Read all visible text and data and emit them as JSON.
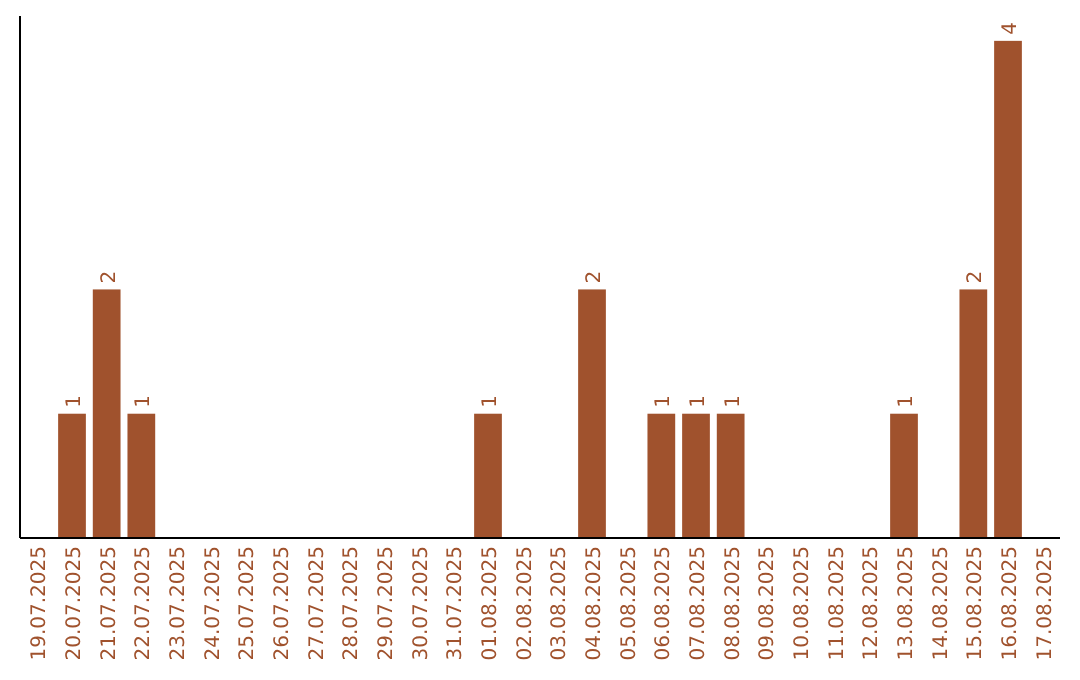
{
  "chart_data": {
    "type": "bar",
    "categories": [
      "19.07.2025",
      "20.07.2025",
      "21.07.2025",
      "22.07.2025",
      "23.07.2025",
      "24.07.2025",
      "25.07.2025",
      "26.07.2025",
      "27.07.2025",
      "28.07.2025",
      "29.07.2025",
      "30.07.2025",
      "31.07.2025",
      "01.08.2025",
      "02.08.2025",
      "03.08.2025",
      "04.08.2025",
      "05.08.2025",
      "06.08.2025",
      "07.08.2025",
      "08.08.2025",
      "09.08.2025",
      "10.08.2025",
      "11.08.2025",
      "12.08.2025",
      "13.08.2025",
      "14.08.2025",
      "15.08.2025",
      "16.08.2025",
      "17.08.2025"
    ],
    "values": [
      0,
      1,
      2,
      1,
      0,
      0,
      0,
      0,
      0,
      0,
      0,
      0,
      0,
      1,
      0,
      0,
      2,
      0,
      1,
      1,
      1,
      0,
      0,
      0,
      0,
      1,
      0,
      2,
      4,
      0
    ],
    "value_labels": [
      null,
      "1",
      "2",
      "1",
      null,
      null,
      null,
      null,
      null,
      null,
      null,
      null,
      null,
      "1",
      null,
      null,
      "2",
      null,
      "1",
      "1",
      "1",
      null,
      null,
      null,
      null,
      "1",
      null,
      "2",
      "4",
      null
    ],
    "color": "#a0522d",
    "ylim": [
      0,
      4.2
    ],
    "tick_labels": "x"
  }
}
